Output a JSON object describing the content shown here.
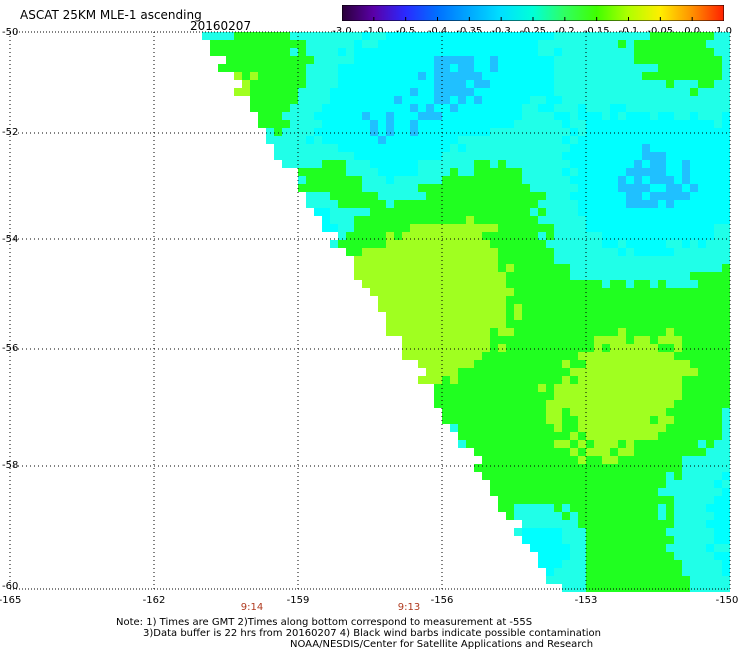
{
  "header": {
    "title": "ASCAT 25KM MLE-1 ascending",
    "date": "20160207"
  },
  "colorbar": {
    "labels": [
      "-3.0",
      "-1.0",
      "-0.5",
      "-0.4",
      "-0.35",
      "-0.3",
      "-0.25",
      "-0.2",
      "-0.15",
      "-0.1",
      "-0.05",
      "0.0",
      "1.0"
    ],
    "colors": [
      "#2a0038",
      "#5a00a8",
      "#2a2aff",
      "#0070ff",
      "#00a8ff",
      "#00e0ff",
      "#00ffd8",
      "#30ff60",
      "#40ff00",
      "#b0ff00",
      "#ffee00",
      "#ff9000",
      "#ff2000"
    ]
  },
  "axes": {
    "lat_labels": [
      "-50",
      "-52",
      "-54",
      "-56",
      "-58",
      "-60"
    ],
    "lon_labels": [
      "-165",
      "-162",
      "-159",
      "-156",
      "-153",
      "-150"
    ],
    "time_labels": [
      "9:14",
      "9:13"
    ]
  },
  "notes": {
    "line1": "Note: 1) Times are GMT 2)Times along bottom correspond to measurement at -55S",
    "line2": "3)Data buffer is 22 hrs from 20160207 4) Black wind barbs indicate possible contamination",
    "line3": "NOAA/NESDIS/Center for Satellite Applications and Research"
  },
  "palette": {
    "cyan": "#00ffff",
    "light_cyan": "#20ffe8",
    "blue": "#20c0ff",
    "green": "#20ff20",
    "yellow_green": "#a0ff20"
  }
}
